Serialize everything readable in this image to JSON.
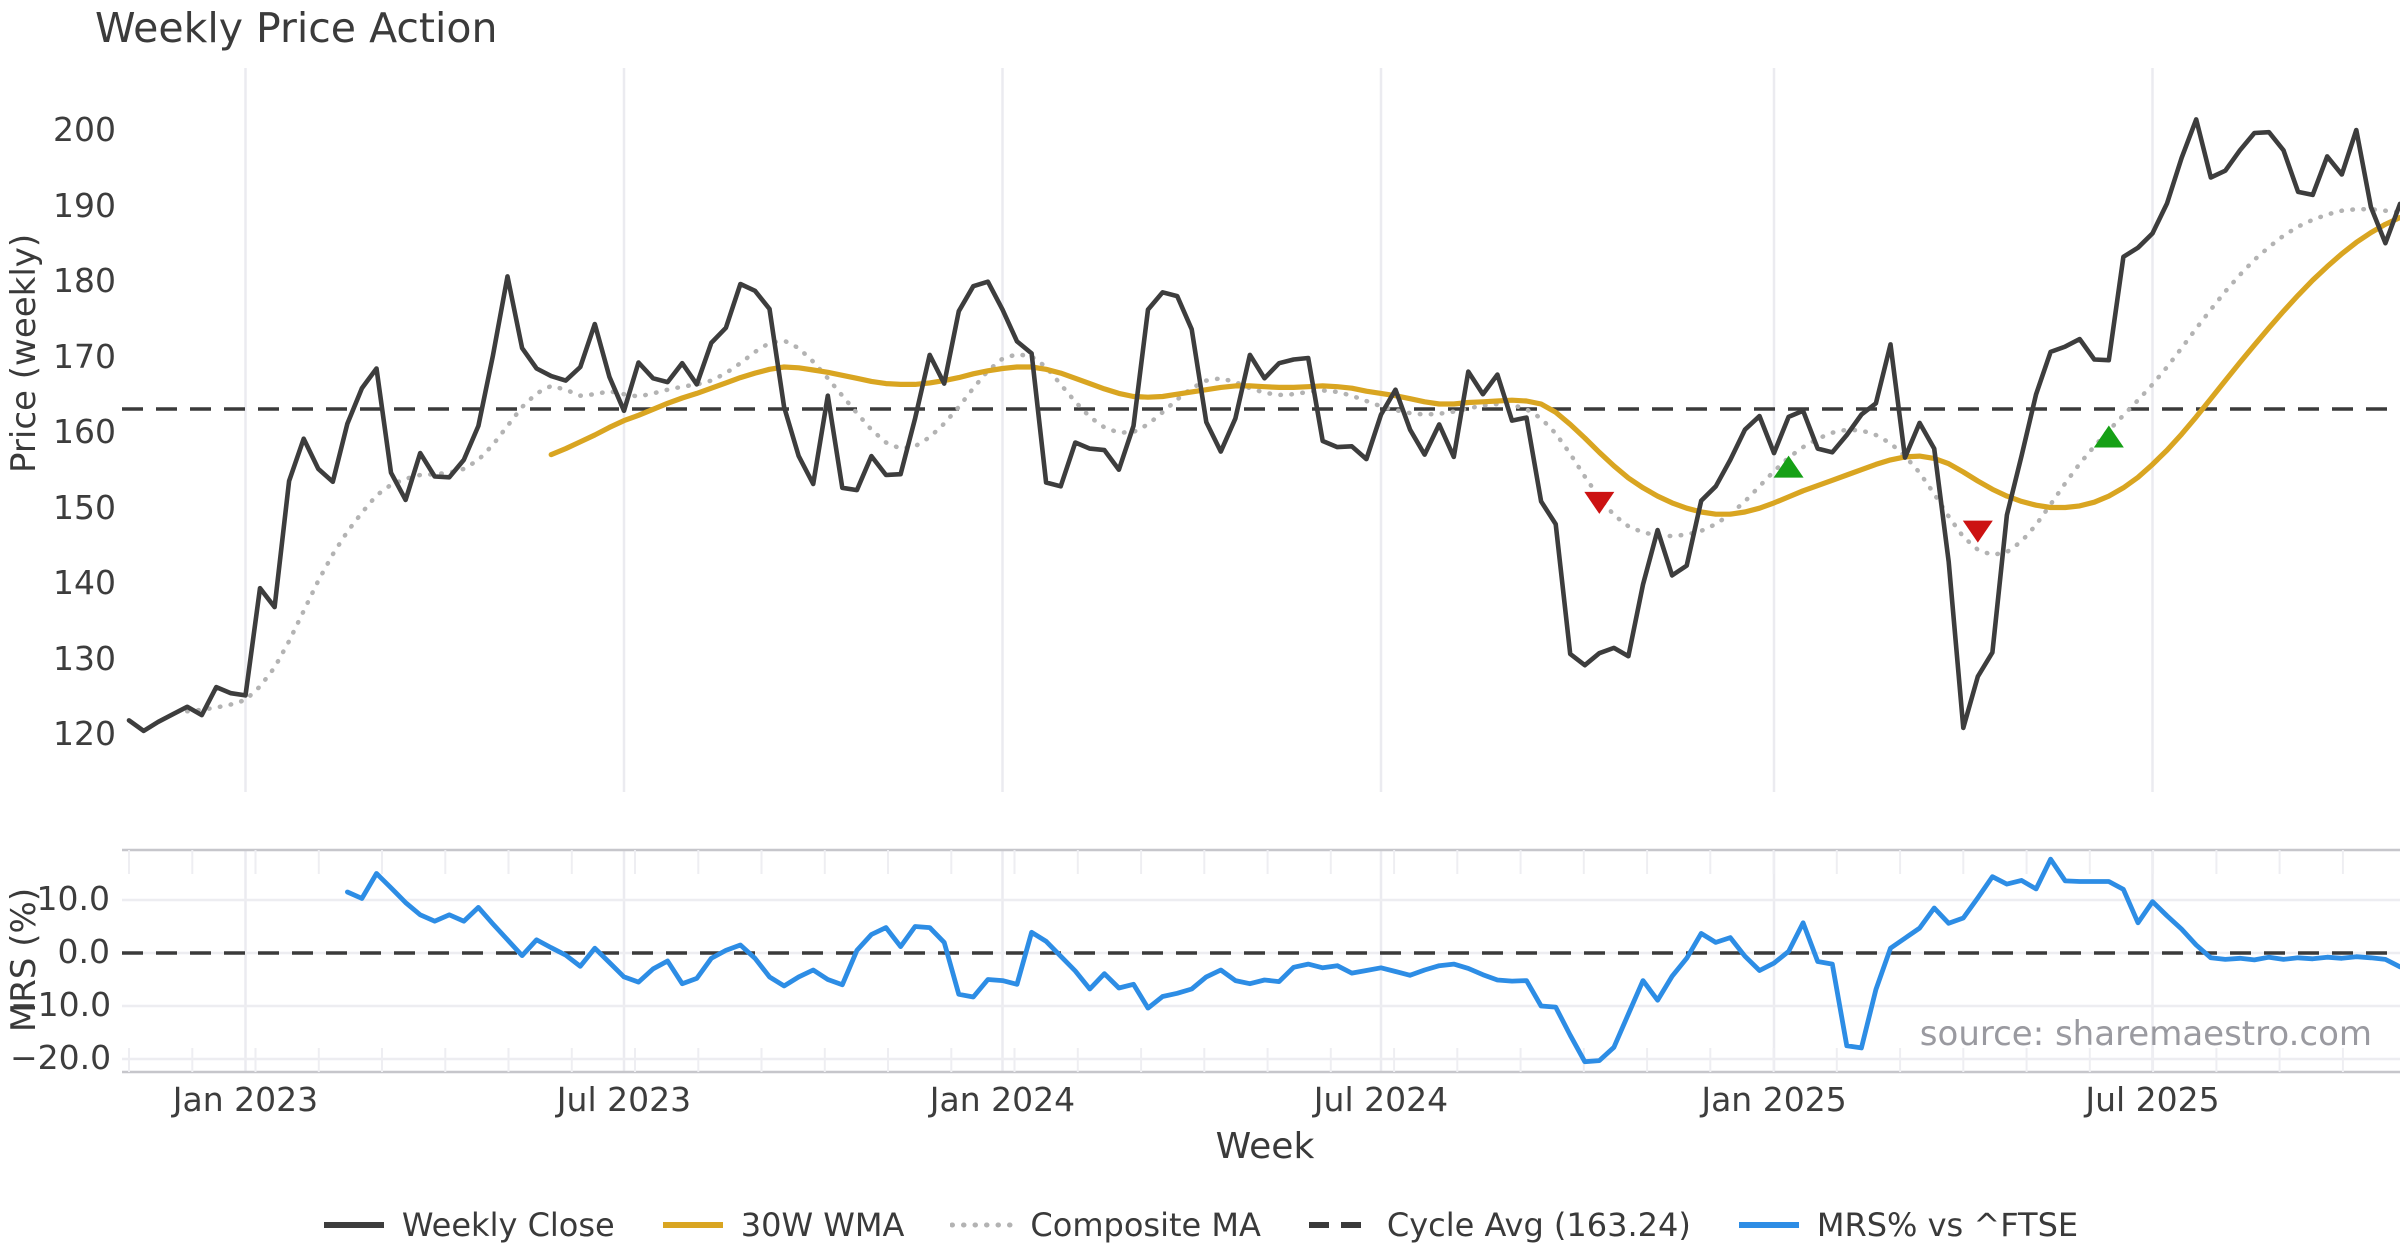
{
  "title": "Weekly Price Action",
  "source": "source: sharemaestro.com",
  "xlabel": "Week",
  "ylabel_price": "Price (weekly)",
  "ylabel_mrs": "MRS (%)",
  "colors": {
    "close": "#3d3d3d",
    "wma": "#d9a521",
    "composite": "#b3b3b3",
    "cycle": "#3a3a3a",
    "mrs": "#2d8de5",
    "sell_marker": "#cc1212",
    "buy_marker": "#16a016",
    "grid": "#ebebf0",
    "spine": "#c6c6cb",
    "background": "#ffffff"
  },
  "legend": {
    "items": [
      {
        "label": "Weekly Close",
        "style": "solid",
        "color": "#3d3d3d"
      },
      {
        "label": "30W WMA",
        "style": "solid",
        "color": "#d9a521"
      },
      {
        "label": "Composite MA",
        "style": "dotted",
        "color": "#b3b3b3"
      },
      {
        "label": "Cycle Avg (163.24)",
        "style": "dashed",
        "color": "#3a3a3a"
      },
      {
        "label": "MRS% vs ^FTSE",
        "style": "solid",
        "color": "#2d8de5"
      }
    ]
  },
  "chart_data": {
    "type": "line",
    "x_axis": {
      "label": "Week",
      "unit": "weekly",
      "n_weeks": 157,
      "ticks": [
        {
          "week": 8,
          "label": "Jan 2023"
        },
        {
          "week": 34,
          "label": "Jul 2023"
        },
        {
          "week": 60,
          "label": "Jan 2024"
        },
        {
          "week": 86,
          "label": "Jul 2024"
        },
        {
          "week": 113,
          "label": "Jan 2025"
        },
        {
          "week": 139,
          "label": "Jul 2025"
        }
      ]
    },
    "price_panel": {
      "ylabel": "Price (weekly)",
      "yticks": [
        200,
        190,
        180,
        170,
        160,
        150,
        140,
        130,
        120
      ],
      "ylim": [
        116,
        208
      ],
      "cycle_avg": 163.24,
      "grid": "vertical-only",
      "series": [
        {
          "name": "Weekly Close",
          "style": "solid",
          "color": "#3d3d3d",
          "start_week": 0,
          "values": [
            122.0,
            120.6,
            121.8,
            122.8,
            123.8,
            122.7,
            126.4,
            125.6,
            125.3,
            139.5,
            137.0,
            153.7,
            159.3,
            155.3,
            153.6,
            161.3,
            166.0,
            168.6,
            154.8,
            151.2,
            157.4,
            154.3,
            154.2,
            156.5,
            161.0,
            170.3,
            180.8,
            171.3,
            168.6,
            167.6,
            167.0,
            168.8,
            174.5,
            167.5,
            163.0,
            169.4,
            167.3,
            166.8,
            169.3,
            166.5,
            172.0,
            174.0,
            179.8,
            178.9,
            176.5,
            163.5,
            157.0,
            153.3,
            165.0,
            152.8,
            152.5,
            157.0,
            154.5,
            154.6,
            162.0,
            170.4,
            166.6,
            176.2,
            179.5,
            180.1,
            176.4,
            172.2,
            170.6,
            153.5,
            153.0,
            158.8,
            158.0,
            157.8,
            155.2,
            161.0,
            176.4,
            178.7,
            178.2,
            173.8,
            161.5,
            157.6,
            162.0,
            170.4,
            167.3,
            169.3,
            169.8,
            170.0,
            159.0,
            158.2,
            158.3,
            156.6,
            162.5,
            165.8,
            160.5,
            157.2,
            161.2,
            156.9,
            168.2,
            165.2,
            167.8,
            161.7,
            162.1,
            151.0,
            148.0,
            130.8,
            129.3,
            130.9,
            131.6,
            130.5,
            140.0,
            147.2,
            141.2,
            142.5,
            151.1,
            153.0,
            156.5,
            160.5,
            162.3,
            157.4,
            162.2,
            163.0,
            158.0,
            157.5,
            159.8,
            162.5,
            164.0,
            171.8,
            156.8,
            161.4,
            158.0,
            143.0,
            121.0,
            127.8,
            131.0,
            149.2,
            157.0,
            165.2,
            170.8,
            171.5,
            172.5,
            169.8,
            169.7,
            183.4,
            184.6,
            186.5,
            190.5,
            196.5,
            201.6,
            193.9,
            194.8,
            197.5,
            199.8,
            199.9,
            197.5,
            192.0,
            191.6,
            196.7,
            194.3,
            200.2,
            190.0,
            185.2,
            190.4
          ]
        },
        {
          "name": "30W WMA",
          "style": "solid",
          "color": "#d9a521",
          "start_week": 29,
          "values": [
            157.2,
            158.0,
            158.9,
            159.8,
            160.8,
            161.7,
            162.4,
            163.2,
            164.0,
            164.7,
            165.3,
            166.0,
            166.7,
            167.4,
            168.0,
            168.5,
            168.8,
            168.7,
            168.4,
            168.1,
            167.7,
            167.3,
            166.9,
            166.6,
            166.5,
            166.5,
            166.7,
            167.0,
            167.4,
            167.9,
            168.3,
            168.6,
            168.8,
            168.8,
            168.5,
            168.0,
            167.3,
            166.6,
            165.9,
            165.3,
            164.9,
            164.8,
            164.9,
            165.2,
            165.5,
            165.8,
            166.1,
            166.3,
            166.3,
            166.2,
            166.1,
            166.1,
            166.2,
            166.3,
            166.2,
            166.0,
            165.6,
            165.3,
            165.0,
            164.6,
            164.2,
            163.9,
            163.9,
            164.1,
            164.2,
            164.3,
            164.4,
            164.3,
            163.9,
            162.8,
            161.2,
            159.4,
            157.5,
            155.7,
            154.1,
            152.8,
            151.7,
            150.8,
            150.1,
            149.6,
            149.3,
            149.3,
            149.6,
            150.1,
            150.8,
            151.6,
            152.4,
            153.1,
            153.8,
            154.5,
            155.2,
            155.9,
            156.5,
            156.9,
            157.0,
            156.7,
            156.0,
            154.9,
            153.7,
            152.6,
            151.7,
            151.0,
            150.5,
            150.2,
            150.2,
            150.4,
            150.9,
            151.7,
            152.8,
            154.2,
            155.9,
            157.8,
            159.9,
            162.2,
            164.6,
            167.0,
            169.4,
            171.7,
            174.0,
            176.2,
            178.3,
            180.3,
            182.1,
            183.8,
            185.3,
            186.6,
            187.7,
            188.6
          ]
        },
        {
          "name": "Composite MA",
          "style": "dotted",
          "color": "#b3b3b3",
          "start_week": 4,
          "values": [
            123.2,
            123.4,
            123.7,
            124.1,
            124.7,
            126.5,
            129.0,
            132.5,
            136.5,
            140.5,
            144.0,
            147.0,
            149.5,
            151.8,
            153.2,
            154.0,
            154.5,
            154.6,
            154.8,
            155.3,
            156.5,
            158.5,
            161.0,
            163.5,
            165.3,
            166.3,
            165.8,
            165.0,
            165.2,
            165.6,
            165.2,
            164.9,
            165.3,
            165.8,
            166.2,
            166.5,
            167.0,
            168.0,
            169.3,
            170.8,
            172.0,
            172.3,
            171.3,
            169.5,
            167.3,
            165.0,
            162.7,
            160.5,
            158.8,
            158.0,
            158.3,
            159.5,
            161.3,
            163.5,
            166.0,
            168.3,
            169.9,
            170.5,
            170.2,
            168.8,
            166.5,
            164.2,
            162.2,
            160.8,
            160.1,
            160.2,
            161.2,
            162.8,
            164.5,
            166.0,
            167.0,
            167.3,
            166.8,
            166.0,
            165.4,
            165.1,
            165.2,
            165.5,
            165.7,
            165.5,
            165.0,
            164.3,
            163.6,
            163.1,
            162.7,
            162.5,
            162.6,
            162.9,
            163.3,
            163.7,
            163.9,
            163.8,
            163.2,
            162.0,
            160.0,
            157.3,
            154.3,
            151.5,
            149.2,
            147.7,
            146.9,
            146.5,
            146.4,
            146.6,
            147.1,
            148.0,
            149.3,
            151.0,
            153.0,
            155.0,
            156.8,
            158.2,
            159.3,
            160.1,
            160.5,
            160.4,
            159.8,
            158.7,
            157.0,
            154.8,
            152.0,
            149.0,
            146.3,
            144.6,
            143.9,
            144.3,
            145.7,
            147.9,
            150.6,
            153.4,
            156.0,
            158.3,
            160.4,
            162.4,
            164.4,
            166.5,
            168.8,
            171.3,
            173.9,
            176.4,
            178.8,
            181.0,
            183.0,
            184.7,
            186.2,
            187.4,
            188.3,
            189.0,
            189.5,
            189.7,
            189.7,
            189.5,
            189.3
          ]
        }
      ],
      "markers": {
        "sell": [
          {
            "week": 101,
            "value": 150.8
          },
          {
            "week": 127,
            "value": 147.0
          }
        ],
        "buy": [
          {
            "week": 114,
            "value": 155.6
          },
          {
            "week": 136,
            "value": 159.6
          }
        ]
      }
    },
    "mrs_panel": {
      "ylabel": "MRS (%)",
      "ytick_labels": [
        "10.0",
        "0.0",
        "−10.0",
        "−20.0"
      ],
      "ytick_values": [
        10,
        0,
        -10,
        -20
      ],
      "ylim": [
        -22.5,
        19.4
      ],
      "zero_line_dashed": true,
      "series": [
        {
          "name": "MRS% vs ^FTSE",
          "style": "solid",
          "color": "#2d8de5",
          "start_week": 15,
          "values": [
            11.5,
            10.3,
            15.0,
            12.3,
            9.5,
            7.2,
            6.0,
            7.2,
            6.0,
            8.6,
            5.5,
            2.5,
            -0.5,
            2.5,
            1.0,
            -0.4,
            -2.5,
            0.9,
            -1.8,
            -4.5,
            -5.5,
            -3.0,
            -1.5,
            -5.8,
            -4.8,
            -1.0,
            0.5,
            1.5,
            -1.0,
            -4.5,
            -6.2,
            -4.5,
            -3.2,
            -5.0,
            -6.0,
            0.5,
            3.5,
            4.8,
            1.2,
            5.0,
            4.8,
            2.0,
            -7.8,
            -8.3,
            -5.0,
            -5.2,
            -5.9,
            3.9,
            2.2,
            -0.6,
            -3.4,
            -6.8,
            -3.9,
            -6.6,
            -5.9,
            -10.4,
            -8.2,
            -7.6,
            -6.8,
            -4.5,
            -3.2,
            -5.2,
            -5.8,
            -5.1,
            -5.4,
            -2.7,
            -2.1,
            -2.8,
            -2.4,
            -3.8,
            -3.3,
            -2.8,
            -3.5,
            -4.2,
            -3.2,
            -2.4,
            -2.1,
            -2.9,
            -4.1,
            -5.1,
            -5.3,
            -5.2,
            -10.0,
            -10.2,
            -15.5,
            -20.5,
            -20.3,
            -17.8,
            -11.5,
            -5.2,
            -8.9,
            -4.4,
            -1.0,
            3.7,
            2.0,
            2.9,
            -0.6,
            -3.3,
            -1.9,
            0.3,
            5.7,
            -1.6,
            -2.1,
            -17.5,
            -17.9,
            -6.9,
            0.9,
            2.8,
            4.7,
            8.5,
            5.6,
            6.6,
            10.4,
            14.4,
            13.0,
            13.7,
            12.1,
            17.7,
            13.6,
            13.5,
            13.5,
            13.5,
            12.0,
            5.7,
            9.7,
            7.0,
            4.5,
            1.5,
            -0.9,
            -1.2,
            -1.0,
            -1.3,
            -0.8,
            -1.2,
            -0.9,
            -1.1,
            -0.8,
            -1.0,
            -0.7,
            -0.9,
            -1.2,
            -2.6
          ]
        }
      ]
    }
  }
}
